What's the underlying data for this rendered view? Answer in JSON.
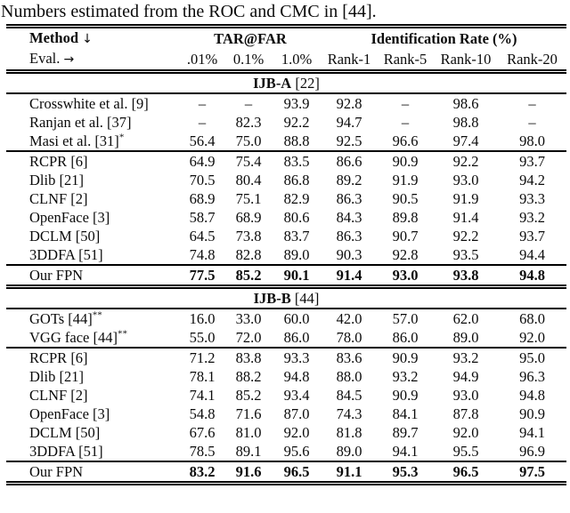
{
  "colors": {
    "text": "#0b0b0b",
    "background": "#ffffff",
    "rule": "#000000"
  },
  "caption": "Numbers estimated from the ROC and CMC in [44].",
  "table": {
    "header": {
      "method_label": "Method",
      "method_arrow": "↓",
      "eval_label": "Eval.",
      "eval_arrow": "→",
      "tar_far_label": "TAR@FAR",
      "id_rate_label": "Identification Rate (%)",
      "columns": [
        ".01%",
        "0.1%",
        "1.0%",
        "Rank-1",
        "Rank-5",
        "Rank-10",
        "Rank-20"
      ]
    },
    "sections": [
      {
        "title": "IJB-A",
        "ref": "[22]",
        "groups": [
          {
            "rows": [
              {
                "method": "Crosswhite et al. [9]",
                "sup": "",
                "bold": false,
                "values": [
                  "–",
                  "–",
                  "93.9",
                  "92.8",
                  "–",
                  "98.6",
                  "–"
                ]
              },
              {
                "method": "Ranjan et al. [37]",
                "sup": "",
                "bold": false,
                "values": [
                  "–",
                  "82.3",
                  "92.2",
                  "94.7",
                  "–",
                  "98.8",
                  "–"
                ]
              },
              {
                "method": "Masi et al. [31]",
                "sup": "*",
                "bold": false,
                "values": [
                  "56.4",
                  "75.0",
                  "88.8",
                  "92.5",
                  "96.6",
                  "97.4",
                  "98.0"
                ]
              }
            ]
          },
          {
            "rows": [
              {
                "method": "RCPR [6]",
                "sup": "",
                "bold": false,
                "values": [
                  "64.9",
                  "75.4",
                  "83.5",
                  "86.6",
                  "90.9",
                  "92.2",
                  "93.7"
                ]
              },
              {
                "method": "Dlib [21]",
                "sup": "",
                "bold": false,
                "values": [
                  "70.5",
                  "80.4",
                  "86.8",
                  "89.2",
                  "91.9",
                  "93.0",
                  "94.2"
                ]
              },
              {
                "method": "CLNF [2]",
                "sup": "",
                "bold": false,
                "values": [
                  "68.9",
                  "75.1",
                  "82.9",
                  "86.3",
                  "90.5",
                  "91.9",
                  "93.3"
                ]
              },
              {
                "method": "OpenFace [3]",
                "sup": "",
                "bold": false,
                "values": [
                  "58.7",
                  "68.9",
                  "80.6",
                  "84.3",
                  "89.8",
                  "91.4",
                  "93.2"
                ]
              },
              {
                "method": "DCLM [50]",
                "sup": "",
                "bold": false,
                "values": [
                  "64.5",
                  "73.8",
                  "83.7",
                  "86.3",
                  "90.7",
                  "92.2",
                  "93.7"
                ]
              },
              {
                "method": "3DDFA [51]",
                "sup": "",
                "bold": false,
                "values": [
                  "74.8",
                  "82.8",
                  "89.0",
                  "90.3",
                  "92.8",
                  "93.5",
                  "94.4"
                ]
              }
            ]
          },
          {
            "rows": [
              {
                "method": "Our FPN",
                "sup": "",
                "bold": true,
                "values": [
                  "77.5",
                  "85.2",
                  "90.1",
                  "91.4",
                  "93.0",
                  "93.8",
                  "94.8"
                ]
              }
            ]
          }
        ]
      },
      {
        "title": "IJB-B",
        "ref": "[44]",
        "groups": [
          {
            "rows": [
              {
                "method": "GOTs [44]",
                "sup": "**",
                "bold": false,
                "values": [
                  "16.0",
                  "33.0",
                  "60.0",
                  "42.0",
                  "57.0",
                  "62.0",
                  "68.0"
                ]
              },
              {
                "method": "VGG face [44]",
                "sup": "**",
                "bold": false,
                "values": [
                  "55.0",
                  "72.0",
                  "86.0",
                  "78.0",
                  "86.0",
                  "89.0",
                  "92.0"
                ]
              }
            ]
          },
          {
            "rows": [
              {
                "method": "RCPR [6]",
                "sup": "",
                "bold": false,
                "values": [
                  "71.2",
                  "83.8",
                  "93.3",
                  "83.6",
                  "90.9",
                  "93.2",
                  "95.0"
                ]
              },
              {
                "method": "Dlib [21]",
                "sup": "",
                "bold": false,
                "values": [
                  "78.1",
                  "88.2",
                  "94.8",
                  "88.0",
                  "93.2",
                  "94.9",
                  "96.3"
                ]
              },
              {
                "method": "CLNF [2]",
                "sup": "",
                "bold": false,
                "values": [
                  "74.1",
                  "85.2",
                  "93.4",
                  "84.5",
                  "90.9",
                  "93.0",
                  "94.8"
                ]
              },
              {
                "method": "OpenFace [3]",
                "sup": "",
                "bold": false,
                "values": [
                  "54.8",
                  "71.6",
                  "87.0",
                  "74.3",
                  "84.1",
                  "87.8",
                  "90.9"
                ]
              },
              {
                "method": "DCLM [50]",
                "sup": "",
                "bold": false,
                "values": [
                  "67.6",
                  "81.0",
                  "92.0",
                  "81.8",
                  "89.7",
                  "92.0",
                  "94.1"
                ]
              },
              {
                "method": "3DDFA [51]",
                "sup": "",
                "bold": false,
                "values": [
                  "78.5",
                  "89.1",
                  "95.6",
                  "89.0",
                  "94.1",
                  "95.5",
                  "96.9"
                ]
              }
            ]
          },
          {
            "rows": [
              {
                "method": "Our FPN",
                "sup": "",
                "bold": true,
                "values": [
                  "83.2",
                  "91.6",
                  "96.5",
                  "91.1",
                  "95.3",
                  "96.5",
                  "97.5"
                ]
              }
            ]
          }
        ]
      }
    ]
  }
}
